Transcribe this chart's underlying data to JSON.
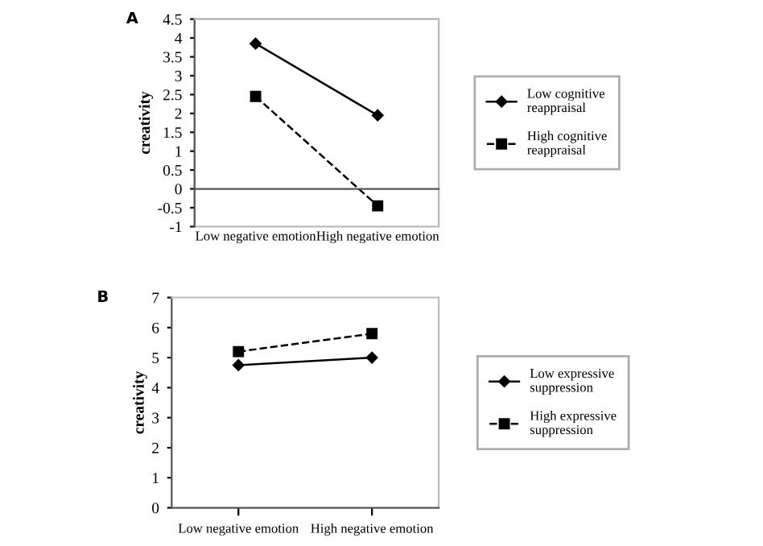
{
  "chart_data": [
    {
      "type": "line",
      "title": "A",
      "ylabel": "creativity",
      "categories": [
        "Low negative emotion",
        "High negative emotion"
      ],
      "series": [
        {
          "name": "Low cognitive reappraisal",
          "color": "#000000",
          "values": [
            3.85,
            1.95
          ],
          "marker": "diamond",
          "line_style": "solid"
        },
        {
          "name": "High cognitive reappraisal",
          "color": "#000000",
          "values": [
            2.45,
            -0.45
          ],
          "marker": "square",
          "line_style": "dashed"
        }
      ],
      "ylim": [
        -1,
        4.5
      ],
      "yticks": [
        {
          "value": -1,
          "label": "-1"
        },
        {
          "value": -0.5,
          "label": "-0.5"
        },
        0,
        0.5,
        1,
        1.5,
        2,
        2.5,
        3,
        3.5,
        4,
        4.5
      ],
      "legend": "right"
    },
    {
      "type": "line",
      "title": "B",
      "ylabel": "creativity",
      "categories": [
        "Low negative emotion",
        "High negative emotion"
      ],
      "series": [
        {
          "name": "Low expressive suppression",
          "color": "#000000",
          "values": [
            4.75,
            5.0
          ],
          "marker": "diamond",
          "line_style": "solid"
        },
        {
          "name": "High expressive suppression",
          "color": "#000000",
          "values": [
            5.2,
            5.8
          ],
          "marker": "square",
          "line_style": "dashed"
        }
      ],
      "ylim": [
        0,
        7
      ],
      "yticks": [
        0,
        1,
        2,
        3,
        4,
        5,
        6,
        7
      ],
      "legend": "right"
    }
  ]
}
